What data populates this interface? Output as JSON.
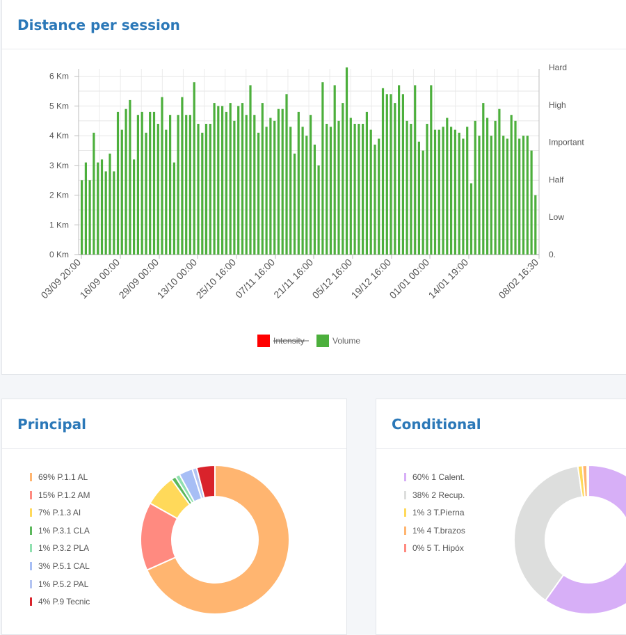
{
  "distance": {
    "title": "Distance per session",
    "legend": {
      "intensity": "Intensity",
      "volume": "Volume"
    },
    "colors": {
      "intensity": "#ff0000",
      "volume": "#4caf3c"
    }
  },
  "principal": {
    "title": "Principal",
    "items": [
      {
        "label": "69% P.1.1 AL",
        "value": 69,
        "color": "#ffb570"
      },
      {
        "label": "15% P.1.2 AM",
        "value": 15,
        "color": "#ff8a80"
      },
      {
        "label": "7% P.1.3 AI",
        "value": 7,
        "color": "#ffd95a"
      },
      {
        "label": "1% P.3.1 CLA",
        "value": 1,
        "color": "#5cb85c"
      },
      {
        "label": "1% P.3.2 PLA",
        "value": 1,
        "color": "#90e0b0"
      },
      {
        "label": "3% P.5.1 CAL",
        "value": 3,
        "color": "#a7bef5"
      },
      {
        "label": "1% P.5.2 PAL",
        "value": 1,
        "color": "#b3c4f2"
      },
      {
        "label": "4% P.9 Tecnic",
        "value": 4,
        "color": "#d9232b"
      }
    ]
  },
  "conditional": {
    "title": "Conditional",
    "items": [
      {
        "label": "60% 1 Calent.",
        "value": 60,
        "color": "#d7aff7"
      },
      {
        "label": "38% 2 Recup.",
        "value": 38,
        "color": "#dddedd"
      },
      {
        "label": "1% 3 T.Pierna",
        "value": 1,
        "color": "#ffd95a"
      },
      {
        "label": "1% 4 T.brazos",
        "value": 1,
        "color": "#ffb570"
      },
      {
        "label": "0% 5 T. Hipóx",
        "value": 0.3,
        "color": "#ff8a80"
      }
    ]
  },
  "chart_data": [
    {
      "type": "bar",
      "title": "Distance per session",
      "x_tick_labels": [
        "03/09 20:00",
        "16/09 00:00",
        "29/09 00:00",
        "13/10 00:00",
        "25/10 16:00",
        "07/11 16:00",
        "21/11 16:00",
        "05/12 16:00",
        "19/12 16:00",
        "01/01 00:00",
        "14/01 19:00",
        "08/02 16:30"
      ],
      "y_tick_labels": [
        "0 Km",
        "1 Km",
        "2 Km",
        "3 Km",
        "4 Km",
        "5 Km",
        "6 Km"
      ],
      "ylim": [
        0,
        6.25
      ],
      "y2_tick_labels": [
        "0.",
        "Low",
        "Half",
        "Important",
        "High",
        "Hard"
      ],
      "legend_position": "bottom",
      "grid": true,
      "series": [
        {
          "name": "Volume",
          "values": [
            2.5,
            3.1,
            2.5,
            4.1,
            3.1,
            3.2,
            2.8,
            3.4,
            2.8,
            4.8,
            4.2,
            4.9,
            5.2,
            3.2,
            4.7,
            4.8,
            4.1,
            4.8,
            4.8,
            4.4,
            5.3,
            4.2,
            4.7,
            3.1,
            4.7,
            5.3,
            4.7,
            4.7,
            5.8,
            4.4,
            4.1,
            4.4,
            4.4,
            5.1,
            5.0,
            5.0,
            4.8,
            5.1,
            4.5,
            5.0,
            5.1,
            4.7,
            5.7,
            4.7,
            4.1,
            5.1,
            4.3,
            4.6,
            4.5,
            4.9,
            4.9,
            5.4,
            4.3,
            3.4,
            4.8,
            4.3,
            4.0,
            4.7,
            3.7,
            3.0,
            5.8,
            4.4,
            4.3,
            5.7,
            4.5,
            5.1,
            6.3,
            4.6,
            4.4,
            4.4,
            4.4,
            4.8,
            4.2,
            3.7,
            3.9,
            5.6,
            5.4,
            5.4,
            5.1,
            5.7,
            5.4,
            4.5,
            4.4,
            5.7,
            3.8,
            3.5,
            4.4,
            5.7,
            4.2,
            4.2,
            4.3,
            4.6,
            4.3,
            4.2,
            4.1,
            3.9,
            4.3,
            2.4,
            4.5,
            4.0,
            5.1,
            4.6,
            4.0,
            4.5,
            4.9,
            4.0,
            3.9,
            4.7,
            4.5,
            3.9,
            4.0,
            4.0,
            3.5,
            2.0
          ]
        },
        {
          "name": "Intensity",
          "values": [],
          "hidden": true
        }
      ]
    },
    {
      "type": "pie",
      "title": "Principal",
      "labels": [
        "69% P.1.1 AL",
        "15% P.1.2 AM",
        "7% P.1.3 AI",
        "1% P.3.1 CLA",
        "1% P.3.2 PLA",
        "3% P.5.1 CAL",
        "1% P.5.2 PAL",
        "4% P.9 Tecnic"
      ],
      "values": [
        69,
        15,
        7,
        1,
        1,
        3,
        1,
        4
      ],
      "legend_position": "left"
    },
    {
      "type": "pie",
      "title": "Conditional",
      "labels": [
        "60% 1 Calent.",
        "38% 2 Recup.",
        "1% 3 T.Pierna",
        "1% 4 T.brazos",
        "0% 5 T. Hipóx"
      ],
      "values": [
        60,
        38,
        1,
        1,
        0.3
      ],
      "legend_position": "left"
    }
  ]
}
